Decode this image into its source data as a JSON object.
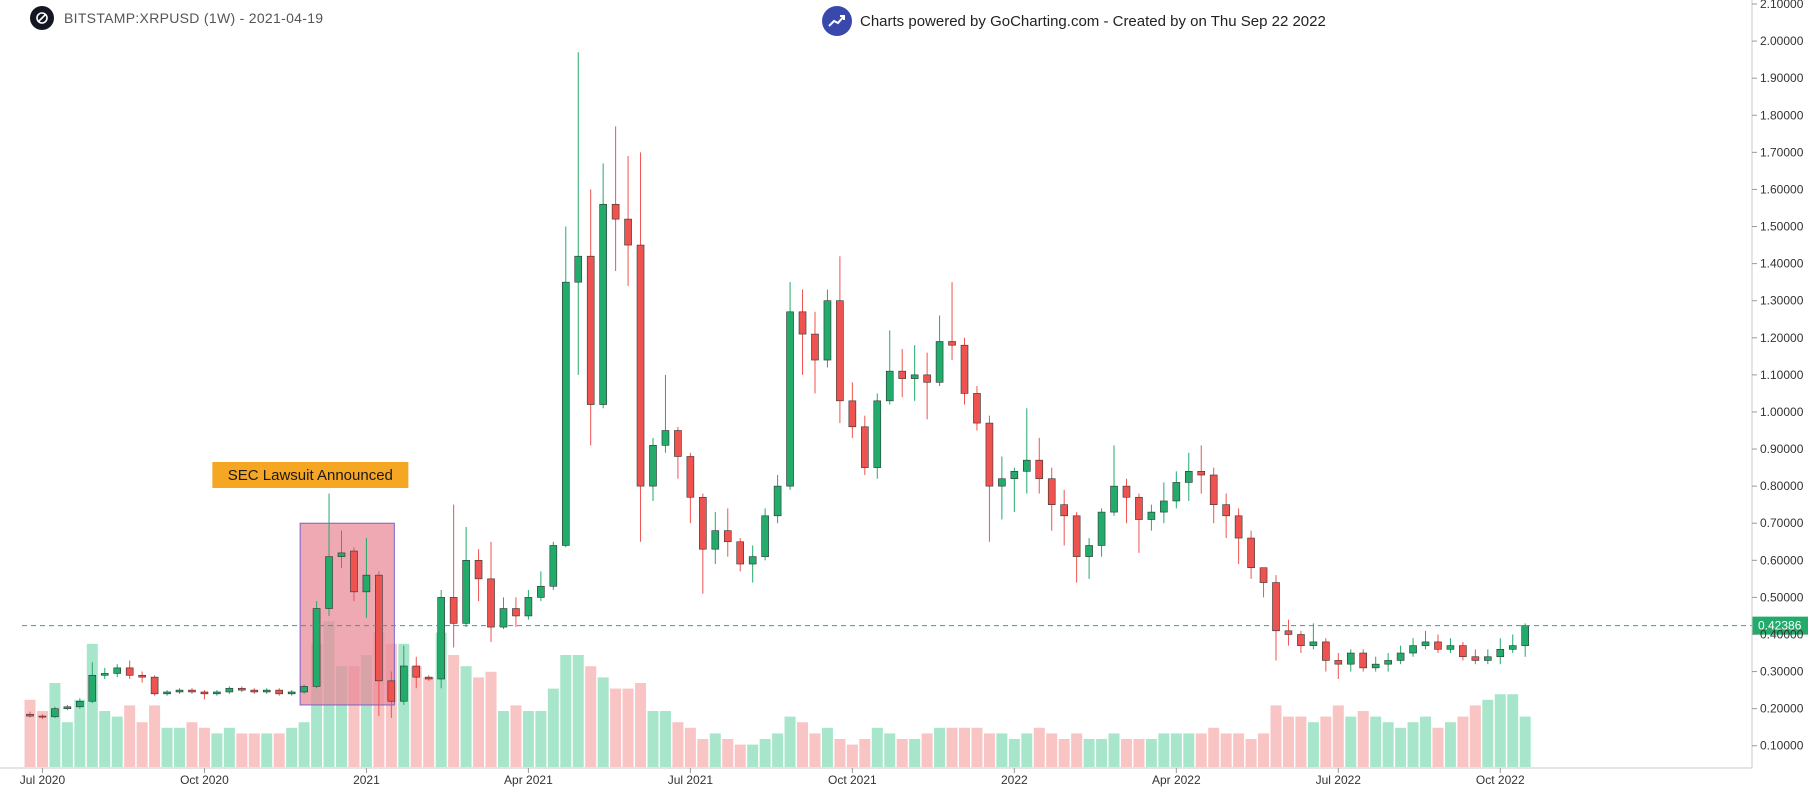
{
  "header": {
    "symbol": "BITSTAMP:XRPUSD (1W) - 2021-04-19",
    "credit": "Charts powered by GoCharting.com - Created by  on Thu Sep 22 2022"
  },
  "colors": {
    "up": "#22ab6b",
    "down": "#ef5350",
    "up_volume": "#a8e6cc",
    "down_volume": "#f9c4c4",
    "price_line": "#26a69a",
    "annotation_bg": "#f5a623",
    "highlight_box": "#e88c99",
    "highlight_border": "#7b61c9"
  },
  "annotation": {
    "label": "SEC Lawsuit Announced"
  },
  "chart_data": {
    "type": "candlestick",
    "interval": "1W",
    "ylim": [
      0.04,
      2.1
    ],
    "y_ticks": [
      0.1,
      0.2,
      0.3,
      0.4,
      0.5,
      0.6,
      0.7,
      0.8,
      0.9,
      1.0,
      1.1,
      1.2,
      1.3,
      1.4,
      1.5,
      1.6,
      1.7,
      1.8,
      1.9,
      2.0,
      2.1
    ],
    "y_tick_labels": [
      "0.10000",
      "0.20000",
      "0.30000",
      "0.40000",
      "0.50000",
      "0.60000",
      "0.70000",
      "0.80000",
      "0.90000",
      "1.00000",
      "1.10000",
      "1.20000",
      "1.30000",
      "1.40000",
      "1.50000",
      "1.60000",
      "1.70000",
      "1.80000",
      "1.90000",
      "2.00000",
      "2.10000"
    ],
    "x_tick_labels": [
      {
        "label": "Jul 2020",
        "week": 1
      },
      {
        "label": "Oct 2020",
        "week": 14
      },
      {
        "label": "2021",
        "week": 27
      },
      {
        "label": "Apr 2021",
        "week": 40
      },
      {
        "label": "Jul 2021",
        "week": 53
      },
      {
        "label": "Oct 2021",
        "week": 66
      },
      {
        "label": "2022",
        "week": 79
      },
      {
        "label": "Apr 2022",
        "week": 92
      },
      {
        "label": "Jul 2022",
        "week": 105
      },
      {
        "label": "Oct 2022",
        "week": 118
      }
    ],
    "last_price": 0.42386,
    "last_price_label": "0.42386",
    "highlight_weeks": [
      22,
      29
    ],
    "annotation_week": 22.5,
    "candles": [
      [
        0.185,
        0.18,
        0.192,
        0.176,
        12
      ],
      [
        0.18,
        0.178,
        0.185,
        0.172,
        10
      ],
      [
        0.178,
        0.2,
        0.205,
        0.175,
        15
      ],
      [
        0.2,
        0.205,
        0.21,
        0.196,
        8
      ],
      [
        0.205,
        0.22,
        0.228,
        0.2,
        12
      ],
      [
        0.22,
        0.29,
        0.325,
        0.215,
        22
      ],
      [
        0.29,
        0.295,
        0.31,
        0.28,
        10
      ],
      [
        0.295,
        0.31,
        0.32,
        0.285,
        9
      ],
      [
        0.31,
        0.29,
        0.33,
        0.28,
        11
      ],
      [
        0.29,
        0.285,
        0.3,
        0.27,
        8
      ],
      [
        0.285,
        0.24,
        0.29,
        0.235,
        11
      ],
      [
        0.24,
        0.245,
        0.25,
        0.235,
        7
      ],
      [
        0.245,
        0.25,
        0.255,
        0.24,
        7
      ],
      [
        0.25,
        0.245,
        0.255,
        0.24,
        8
      ],
      [
        0.245,
        0.24,
        0.25,
        0.225,
        7
      ],
      [
        0.24,
        0.245,
        0.25,
        0.235,
        6
      ],
      [
        0.245,
        0.255,
        0.26,
        0.24,
        7
      ],
      [
        0.255,
        0.25,
        0.26,
        0.245,
        6
      ],
      [
        0.25,
        0.245,
        0.255,
        0.24,
        6
      ],
      [
        0.245,
        0.25,
        0.255,
        0.24,
        6
      ],
      [
        0.25,
        0.24,
        0.255,
        0.235,
        6
      ],
      [
        0.24,
        0.245,
        0.25,
        0.235,
        7
      ],
      [
        0.245,
        0.26,
        0.265,
        0.24,
        8
      ],
      [
        0.26,
        0.47,
        0.49,
        0.255,
        22
      ],
      [
        0.47,
        0.61,
        0.78,
        0.45,
        26
      ],
      [
        0.61,
        0.62,
        0.68,
        0.58,
        18
      ],
      [
        0.625,
        0.515,
        0.635,
        0.49,
        18
      ],
      [
        0.515,
        0.56,
        0.66,
        0.445,
        20
      ],
      [
        0.56,
        0.275,
        0.57,
        0.18,
        24
      ],
      [
        0.275,
        0.22,
        0.3,
        0.175,
        22
      ],
      [
        0.22,
        0.315,
        0.37,
        0.21,
        22
      ],
      [
        0.315,
        0.285,
        0.34,
        0.255,
        18
      ],
      [
        0.285,
        0.28,
        0.29,
        0.275,
        16
      ],
      [
        0.28,
        0.5,
        0.52,
        0.255,
        24
      ],
      [
        0.5,
        0.43,
        0.75,
        0.365,
        20
      ],
      [
        0.43,
        0.6,
        0.69,
        0.42,
        18
      ],
      [
        0.6,
        0.55,
        0.63,
        0.49,
        16
      ],
      [
        0.55,
        0.42,
        0.65,
        0.38,
        17
      ],
      [
        0.42,
        0.47,
        0.5,
        0.415,
        10
      ],
      [
        0.47,
        0.45,
        0.5,
        0.42,
        11
      ],
      [
        0.45,
        0.5,
        0.52,
        0.44,
        10
      ],
      [
        0.5,
        0.53,
        0.57,
        0.49,
        10
      ],
      [
        0.53,
        0.64,
        0.65,
        0.52,
        14
      ],
      [
        0.64,
        1.35,
        1.5,
        0.635,
        20
      ],
      [
        1.35,
        1.42,
        1.97,
        1.1,
        20
      ],
      [
        1.42,
        1.02,
        1.6,
        0.91,
        18
      ],
      [
        1.02,
        1.56,
        1.67,
        1.01,
        16
      ],
      [
        1.56,
        1.52,
        1.77,
        1.38,
        14
      ],
      [
        1.52,
        1.45,
        1.69,
        1.34,
        14
      ],
      [
        1.45,
        0.8,
        1.7,
        0.65,
        15
      ],
      [
        0.8,
        0.91,
        0.93,
        0.76,
        10
      ],
      [
        0.91,
        0.95,
        1.1,
        0.89,
        10
      ],
      [
        0.95,
        0.88,
        0.96,
        0.82,
        8
      ],
      [
        0.88,
        0.77,
        0.89,
        0.7,
        7
      ],
      [
        0.77,
        0.63,
        0.78,
        0.51,
        5
      ],
      [
        0.63,
        0.68,
        0.73,
        0.59,
        6
      ],
      [
        0.68,
        0.65,
        0.74,
        0.61,
        5
      ],
      [
        0.65,
        0.59,
        0.66,
        0.57,
        4
      ],
      [
        0.59,
        0.61,
        0.64,
        0.54,
        4
      ],
      [
        0.61,
        0.72,
        0.74,
        0.6,
        5
      ],
      [
        0.72,
        0.8,
        0.83,
        0.7,
        6
      ],
      [
        0.8,
        1.27,
        1.35,
        0.79,
        9
      ],
      [
        1.27,
        1.21,
        1.33,
        1.1,
        8
      ],
      [
        1.21,
        1.14,
        1.27,
        1.05,
        6
      ],
      [
        1.14,
        1.3,
        1.33,
        1.12,
        7
      ],
      [
        1.3,
        1.03,
        1.42,
        0.97,
        5
      ],
      [
        1.03,
        0.96,
        1.08,
        0.93,
        4
      ],
      [
        0.96,
        0.85,
        0.99,
        0.83,
        5
      ],
      [
        0.85,
        1.03,
        1.05,
        0.82,
        7
      ],
      [
        1.03,
        1.11,
        1.22,
        1.02,
        6
      ],
      [
        1.11,
        1.09,
        1.17,
        1.04,
        5
      ],
      [
        1.09,
        1.1,
        1.18,
        1.03,
        5
      ],
      [
        1.1,
        1.08,
        1.16,
        0.98,
        6
      ],
      [
        1.08,
        1.19,
        1.26,
        1.07,
        7
      ],
      [
        1.19,
        1.18,
        1.35,
        1.14,
        7
      ],
      [
        1.18,
        1.05,
        1.2,
        1.02,
        7
      ],
      [
        1.05,
        0.97,
        1.07,
        0.95,
        7
      ],
      [
        0.97,
        0.8,
        0.99,
        0.65,
        6
      ],
      [
        0.8,
        0.82,
        0.88,
        0.71,
        6
      ],
      [
        0.82,
        0.84,
        0.85,
        0.73,
        5
      ],
      [
        0.84,
        0.87,
        1.01,
        0.78,
        6
      ],
      [
        0.87,
        0.82,
        0.93,
        0.78,
        7
      ],
      [
        0.82,
        0.75,
        0.85,
        0.68,
        6
      ],
      [
        0.75,
        0.72,
        0.79,
        0.64,
        5
      ],
      [
        0.72,
        0.61,
        0.73,
        0.54,
        6
      ],
      [
        0.61,
        0.64,
        0.66,
        0.55,
        5
      ],
      [
        0.64,
        0.73,
        0.74,
        0.61,
        5
      ],
      [
        0.73,
        0.8,
        0.91,
        0.72,
        6
      ],
      [
        0.8,
        0.77,
        0.82,
        0.7,
        5
      ],
      [
        0.77,
        0.71,
        0.78,
        0.62,
        5
      ],
      [
        0.71,
        0.73,
        0.75,
        0.68,
        5
      ],
      [
        0.73,
        0.76,
        0.81,
        0.7,
        6
      ],
      [
        0.76,
        0.81,
        0.84,
        0.74,
        6
      ],
      [
        0.81,
        0.84,
        0.89,
        0.76,
        6
      ],
      [
        0.84,
        0.83,
        0.91,
        0.78,
        6
      ],
      [
        0.83,
        0.75,
        0.85,
        0.7,
        7
      ],
      [
        0.75,
        0.72,
        0.78,
        0.66,
        6
      ],
      [
        0.72,
        0.66,
        0.74,
        0.59,
        6
      ],
      [
        0.66,
        0.58,
        0.68,
        0.55,
        5
      ],
      [
        0.58,
        0.54,
        0.58,
        0.5,
        6
      ],
      [
        0.54,
        0.41,
        0.56,
        0.33,
        11
      ],
      [
        0.41,
        0.4,
        0.44,
        0.37,
        9
      ],
      [
        0.4,
        0.37,
        0.41,
        0.35,
        9
      ],
      [
        0.37,
        0.38,
        0.43,
        0.36,
        8
      ],
      [
        0.38,
        0.33,
        0.39,
        0.3,
        9
      ],
      [
        0.33,
        0.32,
        0.35,
        0.28,
        11
      ],
      [
        0.32,
        0.35,
        0.36,
        0.3,
        9
      ],
      [
        0.35,
        0.31,
        0.36,
        0.3,
        10
      ],
      [
        0.31,
        0.32,
        0.34,
        0.3,
        9
      ],
      [
        0.32,
        0.33,
        0.35,
        0.3,
        8
      ],
      [
        0.33,
        0.35,
        0.37,
        0.32,
        7
      ],
      [
        0.35,
        0.37,
        0.39,
        0.34,
        8
      ],
      [
        0.37,
        0.38,
        0.41,
        0.36,
        9
      ],
      [
        0.38,
        0.36,
        0.4,
        0.35,
        7
      ],
      [
        0.36,
        0.37,
        0.39,
        0.35,
        8
      ],
      [
        0.37,
        0.34,
        0.38,
        0.33,
        9
      ],
      [
        0.34,
        0.33,
        0.36,
        0.32,
        11
      ],
      [
        0.33,
        0.34,
        0.36,
        0.32,
        12
      ],
      [
        0.34,
        0.36,
        0.39,
        0.32,
        13
      ],
      [
        0.36,
        0.37,
        0.4,
        0.35,
        13
      ],
      [
        0.37,
        0.42386,
        0.43,
        0.34,
        9
      ]
    ]
  }
}
